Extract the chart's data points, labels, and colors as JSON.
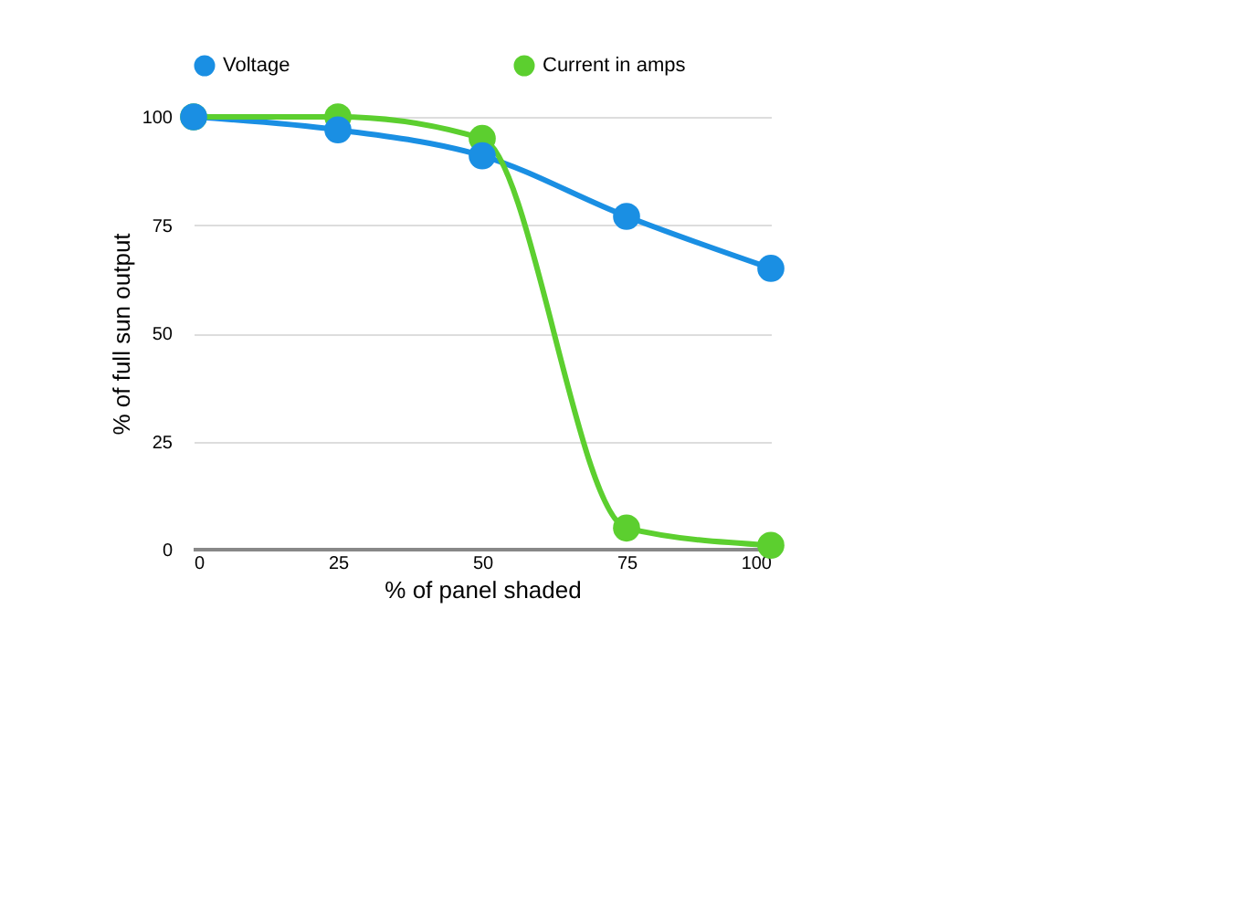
{
  "chart_data": {
    "type": "line",
    "x": [
      0,
      25,
      50,
      75,
      100
    ],
    "xlabel": "% of panel shaded",
    "ylabel": "% of full sun output",
    "series": [
      {
        "name": "Voltage",
        "color": "#1a8fe3",
        "values": [
          100,
          97,
          91,
          77,
          65
        ]
      },
      {
        "name": "Current in amps",
        "color": "#5ccf2f",
        "values": [
          100,
          100,
          95,
          5,
          1
        ]
      }
    ],
    "xlim": [
      0,
      100
    ],
    "xticks": [
      0,
      25,
      50,
      75,
      100
    ],
    "ylim": [
      0,
      100
    ],
    "yticks": [
      0,
      25,
      50,
      75,
      100
    ],
    "grid": "y",
    "legend": "top",
    "marker": "circle",
    "line_style": "solid"
  }
}
